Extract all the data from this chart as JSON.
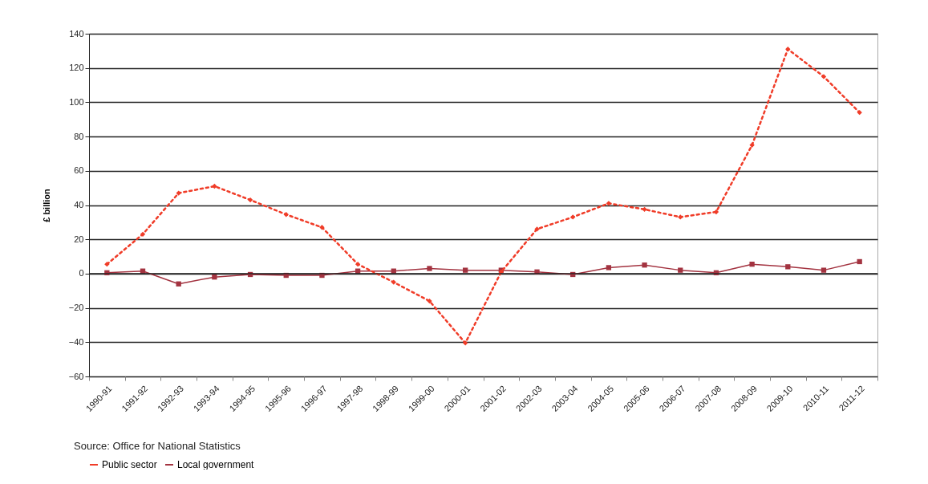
{
  "chart_data": {
    "type": "line",
    "ylabel": "£ billion",
    "annotations": [
      "Source: Office for National Statistics"
    ],
    "categories": [
      "1990-91",
      "1991-92",
      "1992-93",
      "1993-94",
      "1994-95",
      "1995-96",
      "1996-97",
      "1997-98",
      "1998-99",
      "1999-00",
      "2000-01",
      "2001-02",
      "2002-03",
      "2003-04",
      "2004-05",
      "2005-06",
      "2006-07",
      "2007-08",
      "2008-09",
      "2009-10",
      "2010-11",
      "2011-12"
    ],
    "series": [
      {
        "name": "Public sector",
        "color": "#f03c28",
        "line_style": "dotted",
        "marker": "diamond",
        "values": [
          5.5,
          23,
          47,
          51,
          43,
          34.5,
          27,
          5.5,
          -5,
          -16,
          -40.5,
          1,
          26,
          33,
          41,
          37.5,
          33,
          36,
          75,
          131,
          115,
          94
        ]
      },
      {
        "name": "Local government",
        "color": "#a33340",
        "line_style": "solid",
        "marker": "square",
        "values": [
          0.5,
          1.5,
          -6,
          -2,
          -0.5,
          -1,
          -1,
          1.5,
          1.5,
          3,
          2,
          2,
          1,
          -0.5,
          3.5,
          5,
          2,
          0.5,
          5.5,
          4,
          2,
          7
        ]
      }
    ],
    "ylim": [
      -60,
      140
    ],
    "yticks": [
      -60,
      -40,
      -20,
      0,
      20,
      40,
      60,
      80,
      100,
      120,
      140
    ],
    "grid": "y",
    "legend": "bottom"
  }
}
